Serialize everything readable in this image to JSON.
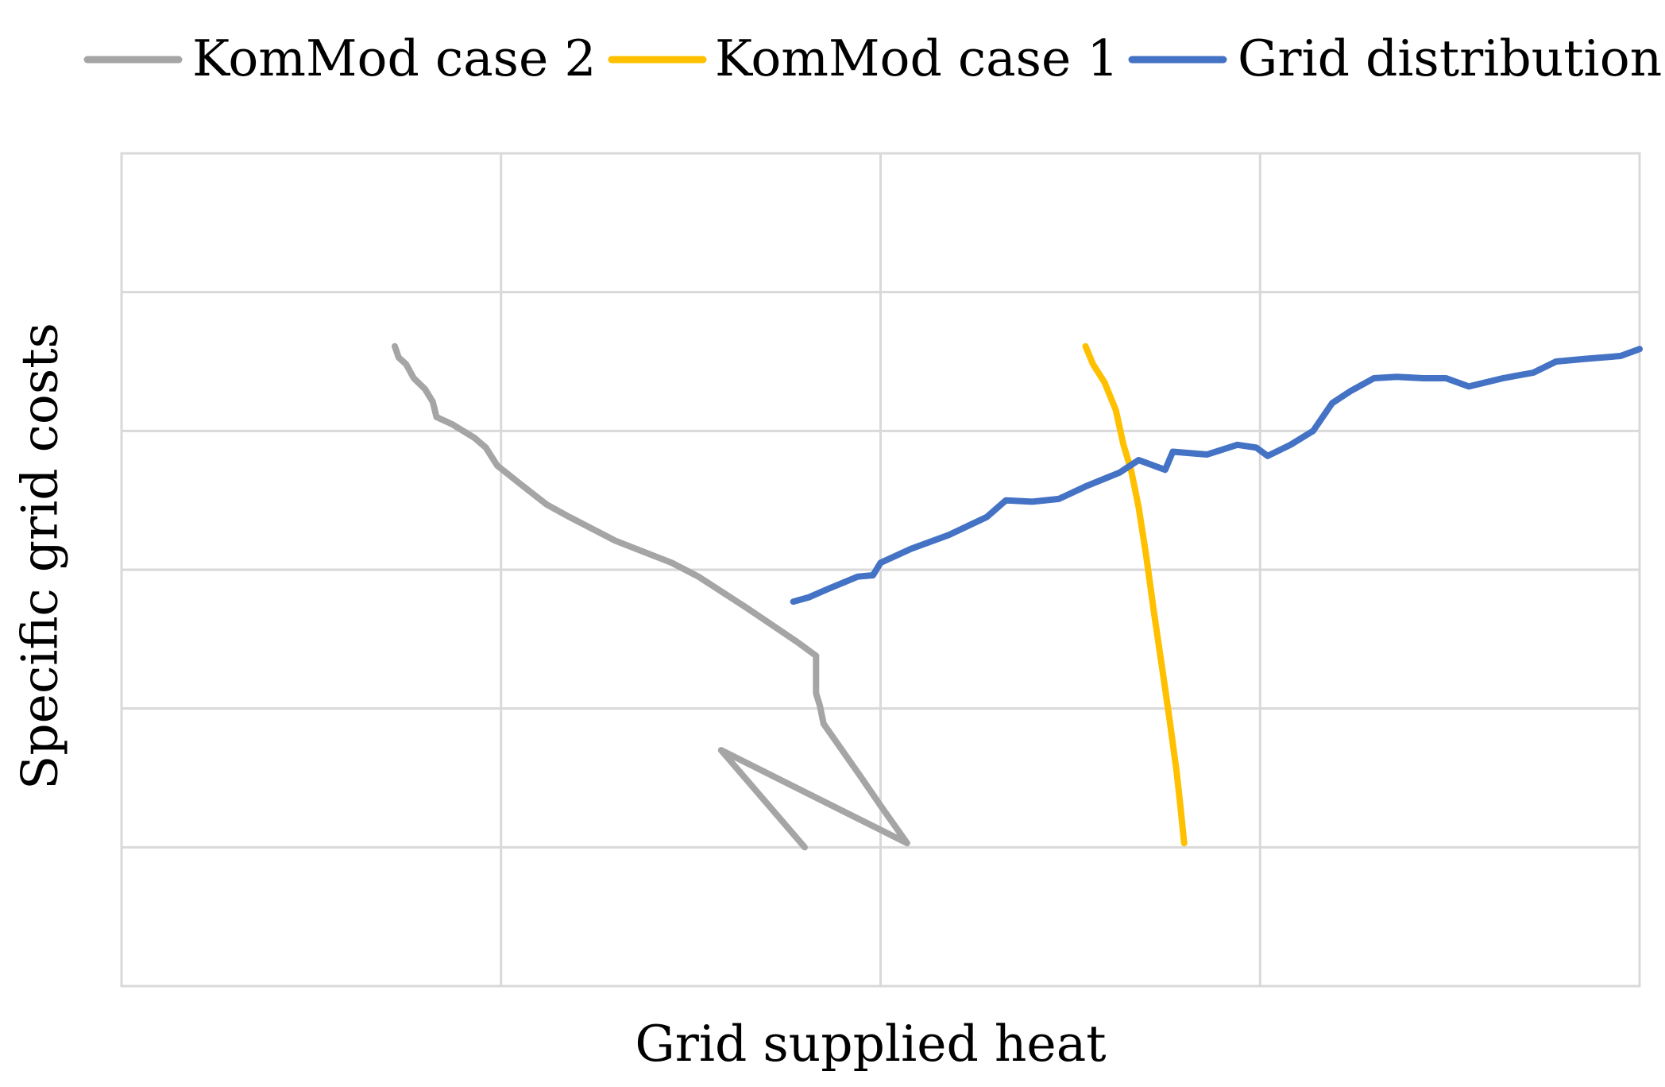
{
  "chart_data": {
    "type": "line",
    "title": "",
    "xlabel": "Grid supplied heat",
    "ylabel": "Specific grid costs",
    "xlim": [
      0,
      4
    ],
    "ylim": [
      0,
      6
    ],
    "x_gridlines": [
      1,
      2,
      3
    ],
    "y_gridlines": [
      1,
      2,
      3,
      4,
      5
    ],
    "tick_labels_shown": false,
    "legend_position": "top",
    "series": [
      {
        "name": "KomMod case 2",
        "color": "#a5a5a5",
        "points": [
          [
            0.72,
            4.61
          ],
          [
            0.73,
            4.53
          ],
          [
            0.75,
            4.48
          ],
          [
            0.77,
            4.38
          ],
          [
            0.8,
            4.3
          ],
          [
            0.82,
            4.21
          ],
          [
            0.83,
            4.1
          ],
          [
            0.87,
            4.05
          ],
          [
            0.93,
            3.95
          ],
          [
            0.96,
            3.88
          ],
          [
            0.99,
            3.75
          ],
          [
            1.05,
            3.62
          ],
          [
            1.12,
            3.47
          ],
          [
            1.18,
            3.38
          ],
          [
            1.3,
            3.21
          ],
          [
            1.45,
            3.05
          ],
          [
            1.52,
            2.95
          ],
          [
            1.65,
            2.72
          ],
          [
            1.78,
            2.48
          ],
          [
            1.83,
            2.38
          ],
          [
            1.83,
            2.11
          ],
          [
            1.84,
            2.02
          ],
          [
            1.85,
            1.89
          ],
          [
            1.95,
            1.5
          ],
          [
            2.0,
            1.3
          ],
          [
            2.07,
            1.03
          ],
          [
            1.58,
            1.7
          ],
          [
            1.8,
            1.0
          ]
        ]
      },
      {
        "name": "KomMod case 1",
        "color": "#ffc000",
        "points": [
          [
            2.54,
            4.61
          ],
          [
            2.56,
            4.48
          ],
          [
            2.59,
            4.35
          ],
          [
            2.62,
            4.15
          ],
          [
            2.64,
            3.9
          ],
          [
            2.66,
            3.72
          ],
          [
            2.68,
            3.45
          ],
          [
            2.7,
            3.1
          ],
          [
            2.72,
            2.7
          ],
          [
            2.74,
            2.33
          ],
          [
            2.76,
            1.95
          ],
          [
            2.78,
            1.55
          ],
          [
            2.79,
            1.3
          ],
          [
            2.8,
            1.03
          ]
        ]
      },
      {
        "name": "Grid distribution",
        "color": "#4472c4",
        "points": [
          [
            1.77,
            2.77
          ],
          [
            1.81,
            2.8
          ],
          [
            1.86,
            2.86
          ],
          [
            1.94,
            2.95
          ],
          [
            1.98,
            2.96
          ],
          [
            2.0,
            3.05
          ],
          [
            2.08,
            3.15
          ],
          [
            2.18,
            3.25
          ],
          [
            2.28,
            3.38
          ],
          [
            2.33,
            3.5
          ],
          [
            2.4,
            3.49
          ],
          [
            2.47,
            3.51
          ],
          [
            2.54,
            3.6
          ],
          [
            2.63,
            3.7
          ],
          [
            2.68,
            3.79
          ],
          [
            2.75,
            3.72
          ],
          [
            2.77,
            3.85
          ],
          [
            2.86,
            3.83
          ],
          [
            2.94,
            3.9
          ],
          [
            2.99,
            3.88
          ],
          [
            3.02,
            3.82
          ],
          [
            3.08,
            3.9
          ],
          [
            3.14,
            4.0
          ],
          [
            3.19,
            4.2
          ],
          [
            3.24,
            4.29
          ],
          [
            3.3,
            4.38
          ],
          [
            3.36,
            4.39
          ],
          [
            3.43,
            4.38
          ],
          [
            3.49,
            4.38
          ],
          [
            3.55,
            4.32
          ],
          [
            3.64,
            4.38
          ],
          [
            3.72,
            4.42
          ],
          [
            3.78,
            4.5
          ],
          [
            3.86,
            4.52
          ],
          [
            3.95,
            4.54
          ],
          [
            4.0,
            4.59
          ]
        ]
      }
    ]
  }
}
